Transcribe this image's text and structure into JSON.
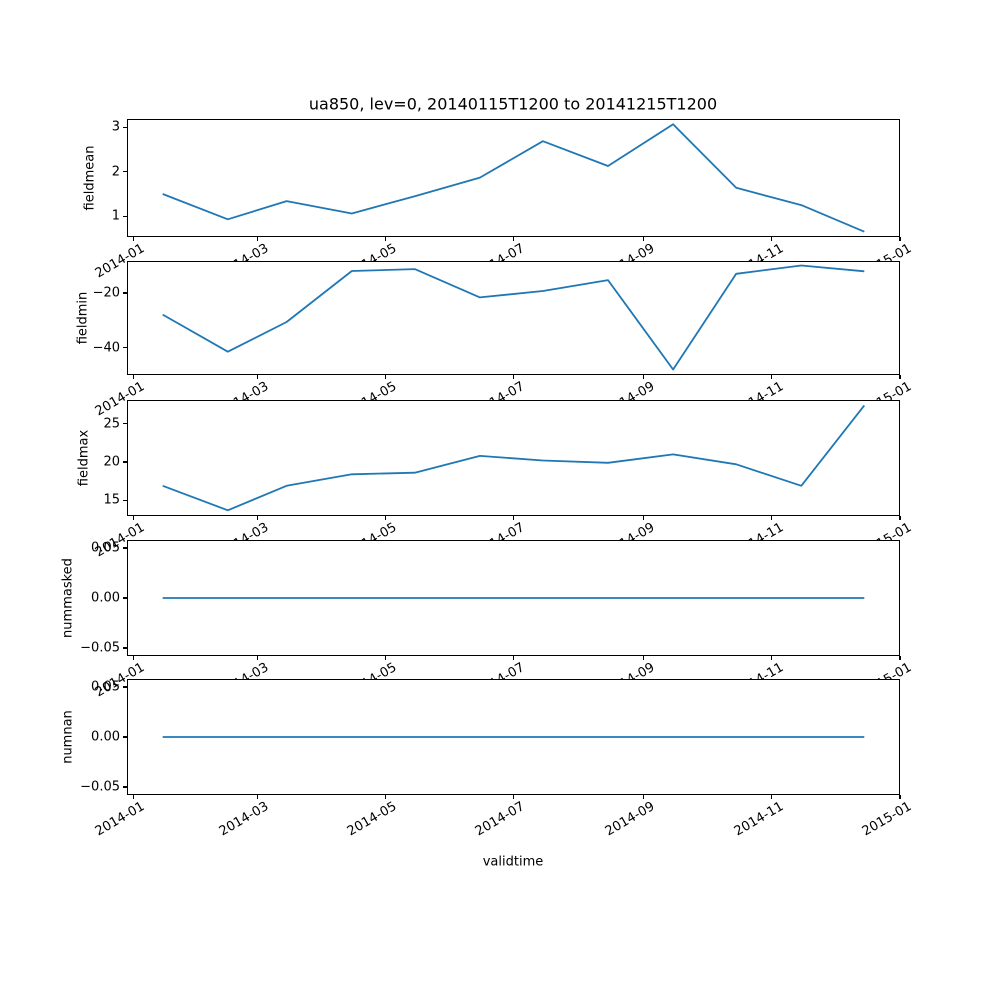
{
  "figure": {
    "background": "#ffffff",
    "text_color": "#000000"
  },
  "chart_data": {
    "type": "line",
    "title": "ua850, lev=0, 20140115T1200 to 20141215T1200",
    "xlabel": "validtime",
    "line_color": "#1f77b4",
    "x": [
      "2014-01-15",
      "2014-02-15",
      "2014-03-15",
      "2014-04-15",
      "2014-05-15",
      "2014-06-15",
      "2014-07-15",
      "2014-08-15",
      "2014-09-15",
      "2014-10-15",
      "2014-11-15",
      "2014-12-15"
    ],
    "x_days": [
      17,
      48,
      76,
      107,
      137,
      168,
      198,
      229,
      260,
      290,
      321,
      351
    ],
    "xlim_days": [
      0,
      368
    ],
    "xtick_days": [
      3,
      62,
      123,
      184,
      246,
      307,
      368
    ],
    "xtick_labels": [
      "2014-01",
      "2014-03",
      "2014-05",
      "2014-07",
      "2014-09",
      "2014-11",
      "2015-01"
    ],
    "grid": false,
    "legend": "none",
    "subplots": [
      {
        "name": "fieldmean",
        "ylabel": "fieldmean",
        "ylim": [
          0.53,
          3.19
        ],
        "yticks": [
          3,
          2,
          1
        ],
        "ytick_labels": [
          "3",
          "2",
          "1"
        ],
        "values": [
          1.5,
          0.93,
          1.34,
          1.06,
          1.45,
          1.87,
          2.69,
          2.13,
          3.07,
          1.64,
          1.25,
          0.65
        ]
      },
      {
        "name": "fieldmin",
        "ylabel": "fieldmin",
        "ylim": [
          -49.9,
          -8.35
        ],
        "yticks": [
          -20,
          -40
        ],
        "ytick_labels": [
          "−20",
          "−40"
        ],
        "values": [
          -27.9,
          -41.4,
          -30.6,
          -12.0,
          -11.3,
          -21.6,
          -19.3,
          -15.3,
          -47.9,
          -13.0,
          -10.0,
          -12.1
        ]
      },
      {
        "name": "fieldmax",
        "ylabel": "fieldmax",
        "ylim": [
          12.95,
          28.1
        ],
        "yticks": [
          25,
          20,
          15
        ],
        "ytick_labels": [
          "25",
          "20",
          "15"
        ],
        "values": [
          16.9,
          13.7,
          16.9,
          18.4,
          18.6,
          20.8,
          20.2,
          19.9,
          21.0,
          19.7,
          16.9,
          27.4
        ]
      },
      {
        "name": "nummasked",
        "ylabel": "nummasked",
        "ylim": [
          -0.058,
          0.058
        ],
        "yticks": [
          0.05,
          0.0,
          -0.05
        ],
        "ytick_labels": [
          "0.05",
          "0.00",
          "−0.05"
        ],
        "values": [
          0,
          0,
          0,
          0,
          0,
          0,
          0,
          0,
          0,
          0,
          0,
          0
        ]
      },
      {
        "name": "numnan",
        "ylabel": "numnan",
        "ylim": [
          -0.058,
          0.058
        ],
        "yticks": [
          0.05,
          0.0,
          -0.05
        ],
        "ytick_labels": [
          "0.05",
          "0.00",
          "−0.05"
        ],
        "values": [
          0,
          0,
          0,
          0,
          0,
          0,
          0,
          0,
          0,
          0,
          0,
          0
        ]
      }
    ]
  }
}
